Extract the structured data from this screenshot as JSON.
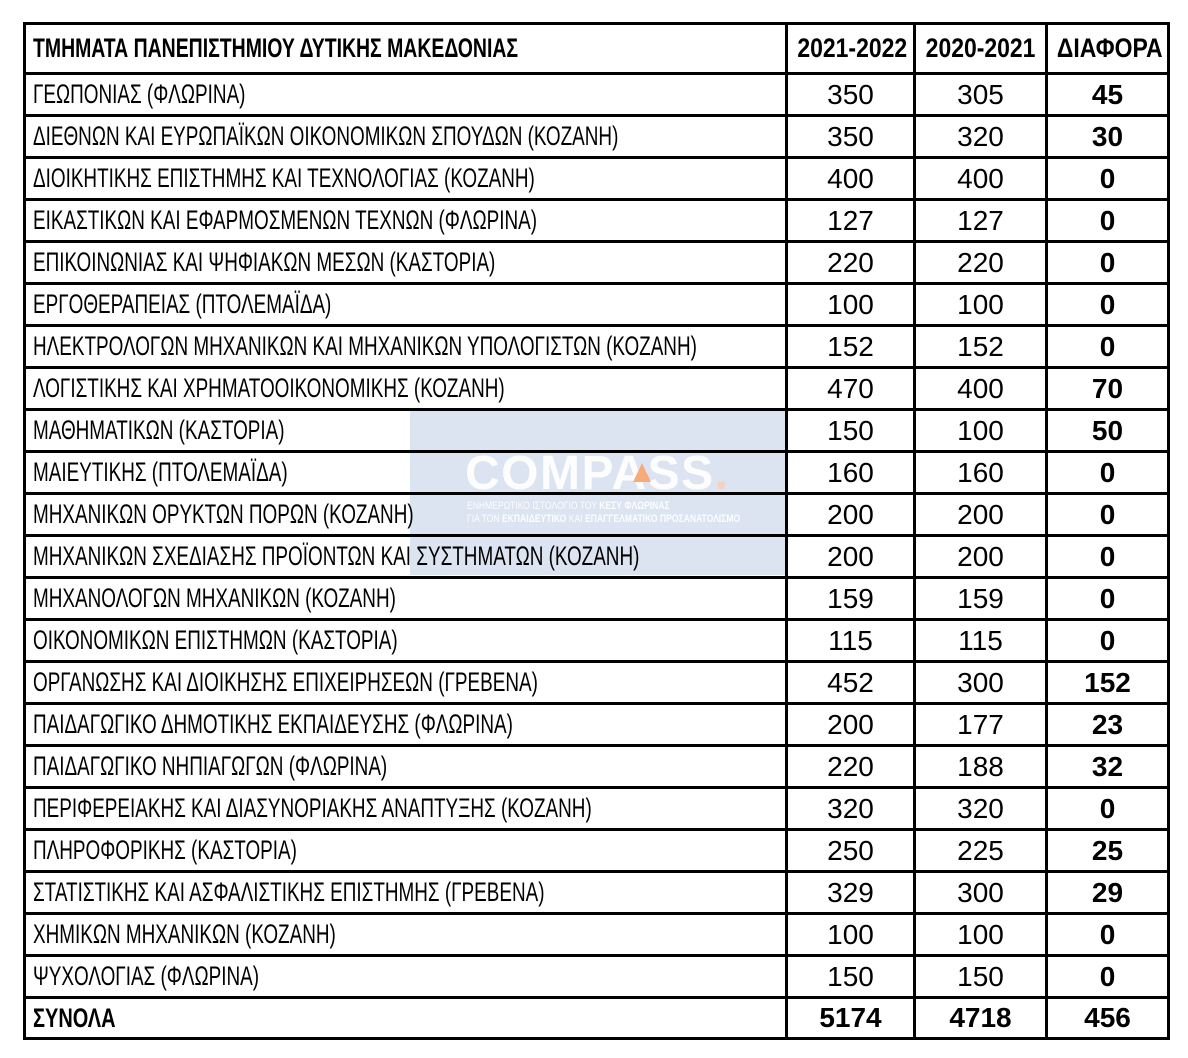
{
  "table": {
    "header": {
      "department": "ΤΜΗΜΑΤΑ ΠΑΝΕΠΙΣΤΗΜΙΟΥ ΔΥΤΙΚΗΣ ΜΑΚΕΔΟΝΙΑΣ",
      "col_2021_2022": "2021-2022",
      "col_2020_2021": "2020-2021",
      "col_diff": "ΔΙΑΦΟΡΑ"
    },
    "rows": [
      {
        "name": "ΓΕΩΠΟΝΙΑΣ (ΦΛΩΡΙΝΑ)",
        "y2122": "350",
        "y2021": "305",
        "diff": "45"
      },
      {
        "name": "ΔΙΕΘΝΩΝ ΚΑΙ ΕΥΡΩΠΑΪΚΩΝ ΟΙΚΟΝΟΜΙΚΩΝ ΣΠΟΥΔΩΝ (ΚΟΖΑΝΗ)",
        "y2122": "350",
        "y2021": "320",
        "diff": "30"
      },
      {
        "name": "ΔΙΟΙΚΗΤΙΚΗΣ ΕΠΙΣΤΗΜΗΣ ΚΑΙ ΤΕΧΝΟΛΟΓΙΑΣ (ΚΟΖΑΝΗ)",
        "y2122": "400",
        "y2021": "400",
        "diff": "0"
      },
      {
        "name": "ΕΙΚΑΣΤΙΚΩΝ ΚΑΙ ΕΦΑΡΜΟΣΜΕΝΩΝ ΤΕΧΝΩΝ (ΦΛΩΡΙΝΑ)",
        "y2122": "127",
        "y2021": "127",
        "diff": "0"
      },
      {
        "name": "ΕΠΙΚΟΙΝΩΝΙΑΣ ΚΑΙ ΨΗΦΙΑΚΩΝ ΜΕΣΩΝ (ΚΑΣΤΟΡΙΑ)",
        "y2122": "220",
        "y2021": "220",
        "diff": "0"
      },
      {
        "name": "ΕΡΓΟΘΕΡΑΠΕΙΑΣ (ΠΤΟΛΕΜΑΪΔΑ)",
        "y2122": "100",
        "y2021": "100",
        "diff": "0"
      },
      {
        "name": "ΗΛΕΚΤΡΟΛΟΓΩΝ ΜΗΧΑΝΙΚΩΝ ΚΑΙ ΜΗΧΑΝΙΚΩΝ ΥΠΟΛΟΓΙΣΤΩΝ (ΚΟΖΑΝΗ)",
        "y2122": "152",
        "y2021": "152",
        "diff": "0"
      },
      {
        "name": "ΛΟΓΙΣΤΙΚΗΣ ΚΑΙ ΧΡΗΜΑΤΟΟΙΚΟΝΟΜΙΚΗΣ (ΚΟΖΑΝΗ)",
        "y2122": "470",
        "y2021": "400",
        "diff": "70"
      },
      {
        "name": "ΜΑΘΗΜΑΤΙΚΩΝ (ΚΑΣΤΟΡΙΑ)",
        "y2122": "150",
        "y2021": "100",
        "diff": "50"
      },
      {
        "name": "ΜΑΙΕΥΤΙΚΗΣ (ΠΤΟΛΕΜΑΪΔΑ)",
        "y2122": "160",
        "y2021": "160",
        "diff": "0"
      },
      {
        "name": "ΜΗΧΑΝΙΚΩΝ ΟΡΥΚΤΩΝ ΠΟΡΩΝ (ΚΟΖΑΝΗ)",
        "y2122": "200",
        "y2021": "200",
        "diff": "0"
      },
      {
        "name": "ΜΗΧΑΝΙΚΩΝ ΣΧΕΔΙΑΣΗΣ ΠΡΟΪΟΝΤΩΝ ΚΑΙ ΣΥΣΤΗΜΑΤΩΝ (ΚΟΖΑΝΗ)",
        "y2122": "200",
        "y2021": "200",
        "diff": "0"
      },
      {
        "name": "ΜΗΧΑΝΟΛΟΓΩΝ ΜΗΧΑΝΙΚΩΝ (ΚΟΖΑΝΗ)",
        "y2122": "159",
        "y2021": "159",
        "diff": "0"
      },
      {
        "name": "ΟΙΚΟΝΟΜΙΚΩΝ ΕΠΙΣΤΗΜΩΝ (ΚΑΣΤΟΡΙΑ)",
        "y2122": "115",
        "y2021": "115",
        "diff": "0"
      },
      {
        "name": "ΟΡΓΑΝΩΣΗΣ ΚΑΙ ΔΙΟΙΚΗΣΗΣ ΕΠΙΧΕΙΡΗΣΕΩΝ (ΓΡΕΒΕΝΑ)",
        "y2122": "452",
        "y2021": "300",
        "diff": "152"
      },
      {
        "name": "ΠΑΙΔΑΓΩΓΙΚΟ ΔΗΜΟΤΙΚΗΣ ΕΚΠΑΙΔΕΥΣΗΣ (ΦΛΩΡΙΝΑ)",
        "y2122": "200",
        "y2021": "177",
        "diff": "23"
      },
      {
        "name": "ΠΑΙΔΑΓΩΓΙΚΟ ΝΗΠΙΑΓΩΓΩΝ (ΦΛΩΡΙΝΑ)",
        "y2122": "220",
        "y2021": "188",
        "diff": "32"
      },
      {
        "name": "ΠΕΡΙΦΕΡΕΙΑΚΗΣ ΚΑΙ ΔΙΑΣΥΝΟΡΙΑΚΗΣ ΑΝΑΠΤΥΞΗΣ (ΚΟΖΑΝΗ)",
        "y2122": "320",
        "y2021": "320",
        "diff": "0"
      },
      {
        "name": "ΠΛΗΡΟΦΟΡΙΚΗΣ (ΚΑΣΤΟΡΙΑ)",
        "y2122": "250",
        "y2021": "225",
        "diff": "25"
      },
      {
        "name": "ΣΤΑΤΙΣΤΙΚΗΣ ΚΑΙ ΑΣΦΑΛΙΣΤΙΚΗΣ ΕΠΙΣΤΗΜΗΣ (ΓΡΕΒΕΝΑ)",
        "y2122": "329",
        "y2021": "300",
        "diff": "29"
      },
      {
        "name": "ΧΗΜΙΚΩΝ ΜΗΧΑΝΙΚΩΝ (ΚΟΖΑΝΗ)",
        "y2122": "100",
        "y2021": "100",
        "diff": "0"
      },
      {
        "name": "ΨΥΧΟΛΟΓΙΑΣ (ΦΛΩΡΙΝΑ)",
        "y2122": "150",
        "y2021": "150",
        "diff": "0"
      }
    ],
    "totals": {
      "label": "ΣΥΝΟΛΑ",
      "y2122": "5174",
      "y2021": "4718",
      "diff": "456"
    }
  },
  "watermark": {
    "logo_text": "COMPASS",
    "logo_dot": ".",
    "line1_prefix": "ΕΝΗΜΕΡΩΤΙΚΟ ΙΣΤΟΛΟΓΙΟ ΤΟΥ ",
    "line1_bold": "ΚΕΣΥ ΦΛΩΡΙΝΑΣ",
    "line2_part1": "ΓΙΑ ΤΟΝ ",
    "line2_bold1": "ΕΚΠΑΙΔΕΥΤΙΚΟ",
    "line2_part2": " ΚΑΙ ",
    "line2_bold2": "ΕΠΑΓΓΕΛΜΑΤΙΚΟ ΠΡΟΣΑΝΑΤΟΛΙΣΜΟ",
    "colors": {
      "background": "#dce4f2",
      "logo": "#ffffff",
      "accent_triangle": "#f7ab7d",
      "dot": "#f3d2c2"
    }
  },
  "page": {
    "colors": {
      "border": "#000000",
      "text": "#000000",
      "page_background": "#ffffff"
    }
  }
}
